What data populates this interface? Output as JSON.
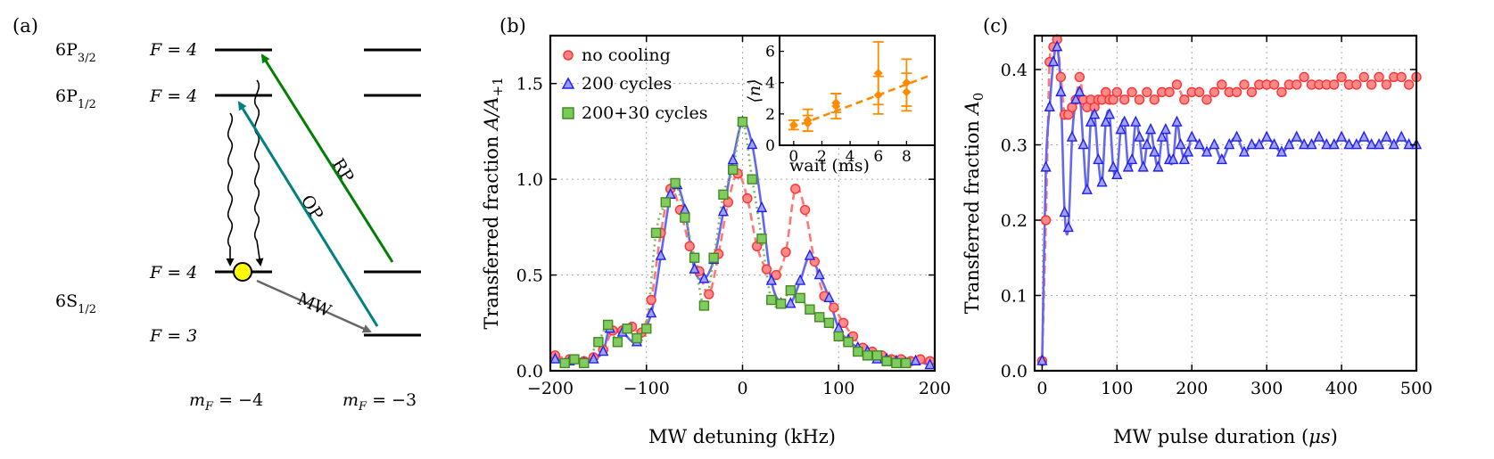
{
  "panel_labels": {
    "a": "(a)",
    "b": "(b)",
    "c": "(c)"
  },
  "level_diagram": {
    "levels": {
      "P32": {
        "state": "6P",
        "sub": "3/2",
        "F": "F = 4"
      },
      "P12": {
        "state": "6P",
        "sub": "1/2",
        "F": "F = 4"
      },
      "S12": {
        "state": "6S",
        "sub": "1/2",
        "F_upper": "F = 4",
        "F_lower": "F = 3"
      }
    },
    "mF_labels": [
      "m",
      "F",
      " = −4",
      " = −3"
    ],
    "transitions": [
      {
        "label": "RP",
        "color": "#007f00"
      },
      {
        "label": "OP",
        "color": "#008080"
      },
      {
        "label": "MW",
        "color": "#666666"
      }
    ],
    "atom_color": "#ffff00"
  },
  "chart_data": [
    {
      "type": "scatter",
      "panel": "b",
      "xlabel": "MW detuning (kHz)",
      "ylabel_main": "Transferred fraction ",
      "ylabel_sym": "A/A",
      "ylabel_sub": "+1",
      "xlim": [
        -200,
        200
      ],
      "ylim": [
        0,
        1.75
      ],
      "xticks": [
        "−200",
        "−100",
        "0",
        "100",
        "200"
      ],
      "yticks": [
        "0.0",
        "0.5",
        "1.0",
        "1.5"
      ],
      "grid": true,
      "legend_position": "top-left",
      "series": [
        {
          "name": "no cooling",
          "color": "#ff5555",
          "marker": "circle",
          "x": [
            -195,
            -180,
            -165,
            -155,
            -145,
            -135,
            -125,
            -115,
            -105,
            -95,
            -85,
            -75,
            -65,
            -55,
            -45,
            -35,
            -25,
            -15,
            -5,
            5,
            15,
            25,
            35,
            45,
            55,
            65,
            75,
            85,
            95,
            105,
            115,
            125,
            135,
            145,
            155,
            165,
            175,
            185,
            195
          ],
          "y": [
            0.08,
            0.06,
            0.05,
            0.07,
            0.11,
            0.21,
            0.21,
            0.23,
            0.2,
            0.37,
            0.72,
            0.95,
            0.84,
            0.65,
            0.52,
            0.4,
            0.61,
            0.88,
            1.03,
            0.9,
            0.65,
            0.53,
            0.5,
            0.62,
            0.95,
            0.84,
            0.57,
            0.39,
            0.33,
            0.25,
            0.18,
            0.12,
            0.1,
            0.08,
            0.06,
            0.06,
            0.05,
            0.06,
            0.05
          ]
        },
        {
          "name": "200 cycles",
          "color": "#3333ff",
          "marker": "triangle",
          "x": [
            -195,
            -180,
            -165,
            -155,
            -145,
            -138,
            -125,
            -110,
            -95,
            -85,
            -75,
            -68,
            -60,
            -50,
            -40,
            -30,
            -20,
            -10,
            0,
            10,
            20,
            30,
            40,
            50,
            60,
            70,
            80,
            90,
            100,
            110,
            120,
            130,
            140,
            150,
            160,
            170,
            180,
            195
          ],
          "y": [
            0.06,
            0.05,
            0.04,
            0.06,
            0.1,
            0.22,
            0.2,
            0.15,
            0.3,
            0.6,
            0.92,
            0.97,
            0.84,
            0.53,
            0.48,
            0.58,
            0.83,
            1.1,
            1.3,
            1.18,
            0.85,
            0.47,
            0.35,
            0.35,
            0.47,
            0.6,
            0.5,
            0.38,
            0.22,
            0.16,
            0.12,
            0.1,
            0.06,
            0.06,
            0.05,
            0.04,
            0.05,
            0.03
          ]
        },
        {
          "name": "200+30 cycles",
          "color": "#55aa33",
          "marker": "square",
          "x": [
            -185,
            -175,
            -165,
            -150,
            -140,
            -130,
            -120,
            -110,
            -100,
            -90,
            -80,
            -70,
            -60,
            -50,
            -40,
            -30,
            -20,
            -10,
            0,
            10,
            20,
            30,
            40,
            50,
            60,
            70,
            80,
            90,
            100,
            110,
            120,
            130,
            140,
            150,
            160,
            170
          ],
          "y": [
            0.04,
            0.06,
            0.04,
            0.15,
            0.24,
            0.15,
            0.22,
            0.17,
            0.22,
            0.72,
            0.88,
            0.98,
            0.8,
            0.59,
            0.34,
            0.59,
            0.92,
            1.05,
            1.3,
            1.0,
            0.69,
            0.37,
            0.35,
            0.42,
            0.38,
            0.32,
            0.28,
            0.25,
            0.18,
            0.15,
            0.1,
            0.08,
            0.08,
            0.05,
            0.04,
            0.04
          ]
        }
      ],
      "inset": {
        "type": "scatter",
        "xlabel": "wait (ms)",
        "ylabel": "⟨n⟩",
        "xlim": [
          -1,
          10
        ],
        "ylim": [
          0,
          7
        ],
        "xticks": [
          "0",
          "2",
          "4",
          "6",
          "8"
        ],
        "yticks": [
          "0",
          "2",
          "4",
          "6"
        ],
        "color": "#ff8c00",
        "points": [
          {
            "x": 0,
            "y": 1.3,
            "err": 0.3
          },
          {
            "x": 1,
            "y": 1.6,
            "err": 0.7
          },
          {
            "x": 1,
            "y": 1.4,
            "err": 0.5
          },
          {
            "x": 3,
            "y": 2.5,
            "err": 0.8
          },
          {
            "x": 3,
            "y": 2.7,
            "err": 0.6
          },
          {
            "x": 6,
            "y": 4.6,
            "err": 2.0
          },
          {
            "x": 6,
            "y": 3.2,
            "err": 1.2
          },
          {
            "x": 8,
            "y": 4.0,
            "err": 1.5
          },
          {
            "x": 8,
            "y": 3.4,
            "err": 1.2
          }
        ],
        "fit": {
          "x": [
            -0.2,
            9.5
          ],
          "y": [
            1.1,
            4.4
          ]
        }
      }
    },
    {
      "type": "scatter",
      "panel": "c",
      "xlabel_main": "MW pulse duration (",
      "xlabel_unit": "μs",
      "xlabel_close": ")",
      "ylabel_main": "Transferred fraction ",
      "ylabel_sym": "A",
      "ylabel_sub": "0",
      "xlim": [
        -10,
        500
      ],
      "ylim": [
        0,
        0.445
      ],
      "xticks": [
        "0",
        "100",
        "200",
        "300",
        "400",
        "500"
      ],
      "yticks": [
        "0.0",
        "0.1",
        "0.2",
        "0.3",
        "0.4"
      ],
      "grid": true,
      "series": [
        {
          "name": "no cooling",
          "color": "#ff5555",
          "marker": "circle",
          "x": [
            0,
            5,
            10,
            15,
            20,
            25,
            30,
            35,
            40,
            45,
            50,
            55,
            60,
            65,
            70,
            75,
            80,
            85,
            90,
            95,
            100,
            110,
            120,
            130,
            140,
            150,
            160,
            170,
            180,
            190,
            200,
            210,
            220,
            230,
            240,
            250,
            260,
            270,
            280,
            290,
            300,
            310,
            320,
            330,
            340,
            350,
            360,
            370,
            380,
            390,
            400,
            410,
            420,
            430,
            440,
            450,
            460,
            470,
            480,
            490,
            500
          ],
          "y": [
            0.013,
            0.2,
            0.41,
            0.43,
            0.44,
            0.39,
            0.34,
            0.34,
            0.35,
            0.36,
            0.39,
            0.36,
            0.35,
            0.36,
            0.35,
            0.36,
            0.36,
            0.37,
            0.36,
            0.36,
            0.37,
            0.36,
            0.37,
            0.36,
            0.37,
            0.36,
            0.37,
            0.37,
            0.38,
            0.36,
            0.37,
            0.37,
            0.36,
            0.37,
            0.38,
            0.37,
            0.37,
            0.38,
            0.37,
            0.38,
            0.38,
            0.38,
            0.37,
            0.38,
            0.38,
            0.39,
            0.38,
            0.38,
            0.38,
            0.38,
            0.39,
            0.38,
            0.38,
            0.39,
            0.38,
            0.39,
            0.38,
            0.39,
            0.39,
            0.38,
            0.39
          ]
        },
        {
          "name": "200 cycles",
          "color": "#3333ff",
          "marker": "triangle",
          "x": [
            0,
            5,
            10,
            15,
            20,
            25,
            30,
            35,
            40,
            45,
            50,
            55,
            60,
            65,
            70,
            75,
            80,
            85,
            90,
            95,
            100,
            105,
            110,
            115,
            120,
            125,
            130,
            135,
            140,
            145,
            150,
            155,
            160,
            165,
            170,
            175,
            180,
            185,
            190,
            195,
            200,
            210,
            220,
            230,
            240,
            250,
            260,
            270,
            280,
            290,
            300,
            310,
            320,
            330,
            340,
            350,
            360,
            370,
            380,
            390,
            400,
            410,
            420,
            430,
            440,
            450,
            460,
            470,
            480,
            490,
            500
          ],
          "y": [
            0.013,
            0.27,
            0.35,
            0.41,
            0.43,
            0.37,
            0.21,
            0.19,
            0.31,
            0.36,
            0.37,
            0.3,
            0.24,
            0.33,
            0.34,
            0.28,
            0.25,
            0.33,
            0.34,
            0.27,
            0.26,
            0.32,
            0.33,
            0.27,
            0.28,
            0.33,
            0.31,
            0.27,
            0.3,
            0.32,
            0.29,
            0.27,
            0.31,
            0.32,
            0.28,
            0.28,
            0.33,
            0.3,
            0.28,
            0.29,
            0.31,
            0.3,
            0.29,
            0.3,
            0.28,
            0.3,
            0.31,
            0.29,
            0.3,
            0.3,
            0.31,
            0.3,
            0.29,
            0.3,
            0.31,
            0.3,
            0.3,
            0.31,
            0.3,
            0.3,
            0.31,
            0.3,
            0.3,
            0.31,
            0.3,
            0.3,
            0.31,
            0.3,
            0.31,
            0.3,
            0.3
          ]
        }
      ]
    }
  ]
}
